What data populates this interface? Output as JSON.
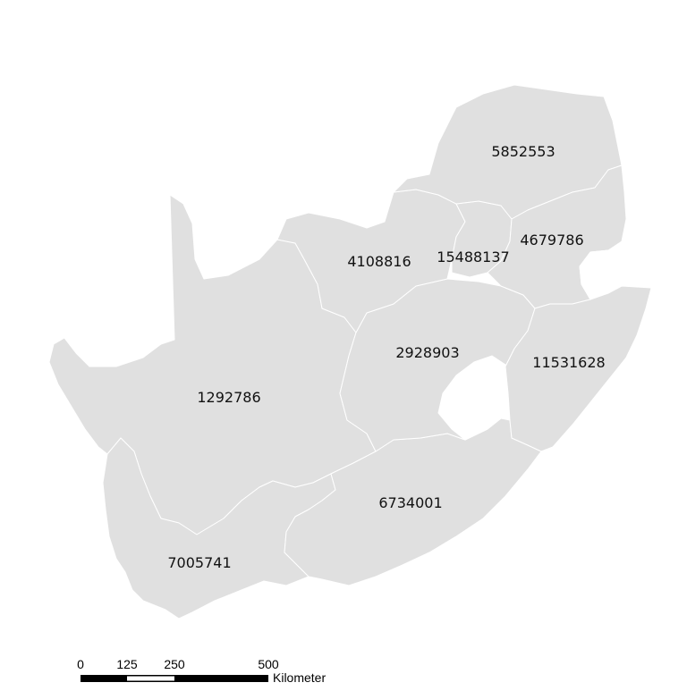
{
  "map": {
    "background": "#ffffff",
    "fill_color": "#e0e0e0",
    "border_color": "#ffffff",
    "regions": [
      {
        "id": "limpopo",
        "value": "5852553"
      },
      {
        "id": "north-west",
        "value": "4108816"
      },
      {
        "id": "gauteng",
        "value": "15488137"
      },
      {
        "id": "mpumalanga",
        "value": "4679786"
      },
      {
        "id": "free-state",
        "value": "2928903"
      },
      {
        "id": "kwazulu-natal",
        "value": "11531628"
      },
      {
        "id": "northern-cape",
        "value": "1292786"
      },
      {
        "id": "eastern-cape",
        "value": "6734001"
      },
      {
        "id": "western-cape",
        "value": "7005741"
      }
    ]
  },
  "scalebar": {
    "ticks": [
      "0",
      "125",
      "250",
      "500"
    ],
    "unit": "Kilometer"
  }
}
